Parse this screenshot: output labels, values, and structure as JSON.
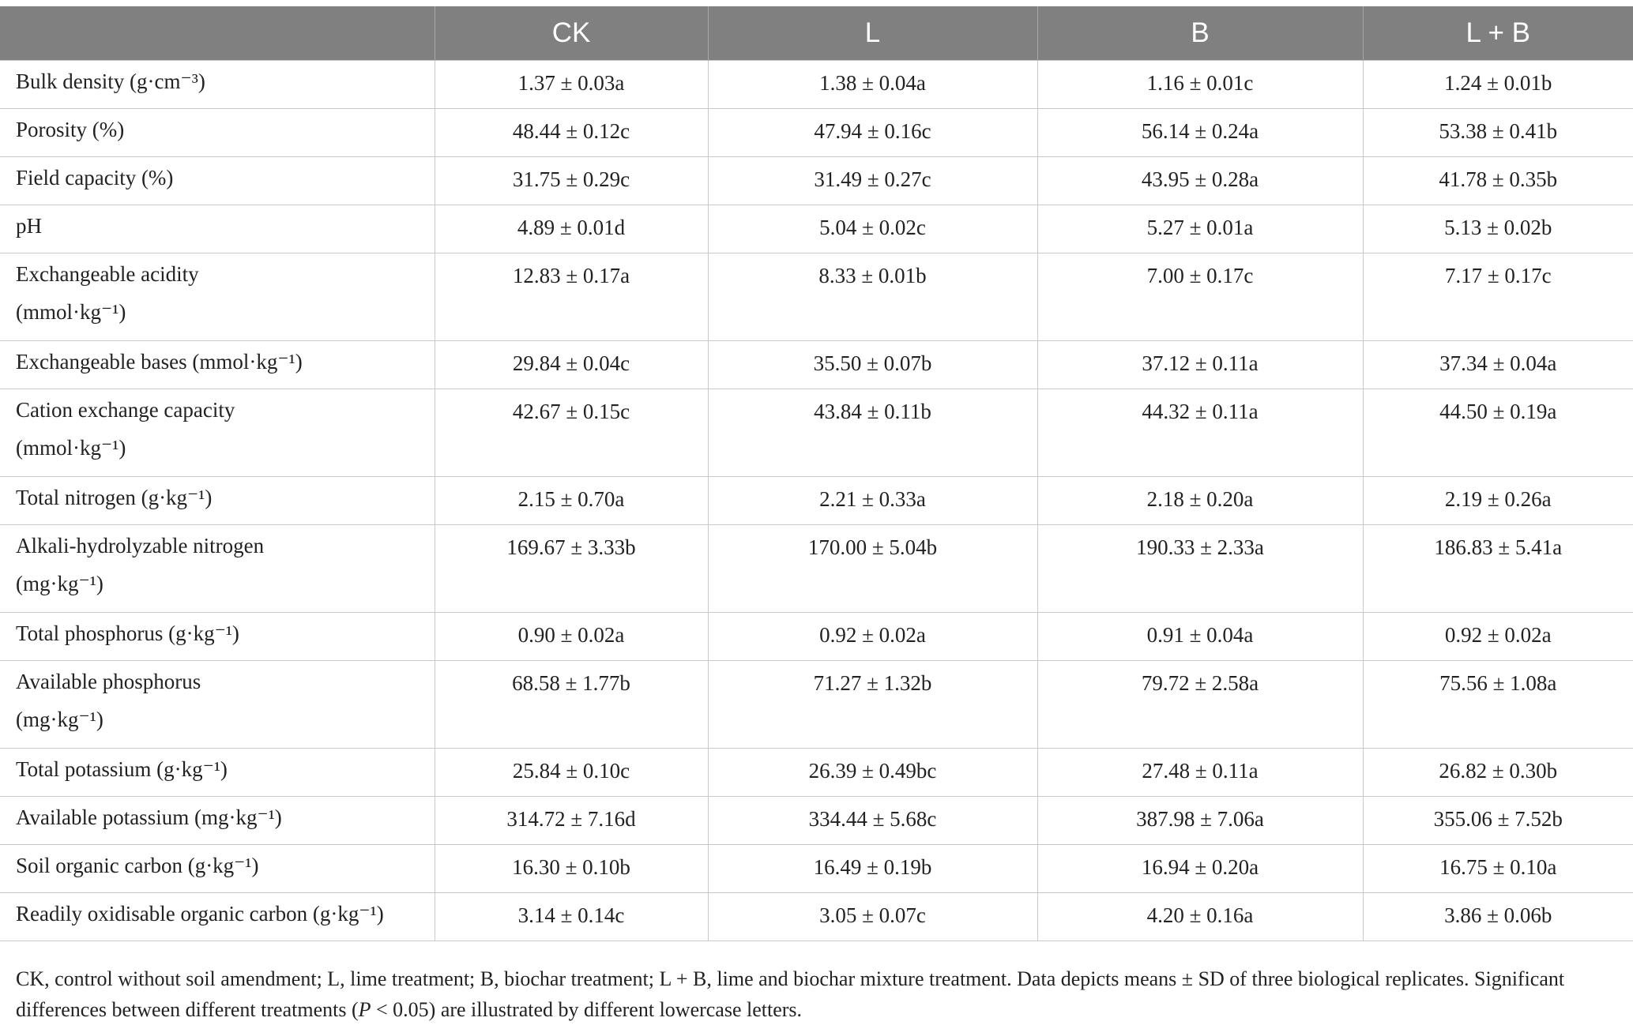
{
  "table": {
    "headers": [
      "",
      "CK",
      "L",
      "B",
      "L + B"
    ],
    "rows": [
      {
        "label": "Bulk density (g·cm⁻³)",
        "label2": "",
        "values": [
          "1.37 ± 0.03a",
          "1.38 ± 0.04a",
          "1.16 ± 0.01c",
          "1.24 ± 0.01b"
        ]
      },
      {
        "label": "Porosity (%)",
        "label2": "",
        "values": [
          "48.44 ± 0.12c",
          "47.94 ± 0.16c",
          "56.14 ± 0.24a",
          "53.38 ± 0.41b"
        ]
      },
      {
        "label": "Field capacity (%)",
        "label2": "",
        "values": [
          "31.75 ± 0.29c",
          "31.49 ± 0.27c",
          "43.95 ± 0.28a",
          "41.78 ± 0.35b"
        ]
      },
      {
        "label": "pH",
        "label2": "",
        "values": [
          "4.89 ± 0.01d",
          "5.04 ± 0.02c",
          "5.27 ± 0.01a",
          "5.13 ± 0.02b"
        ]
      },
      {
        "label": "Exchangeable acidity",
        "label2": "(mmol·kg⁻¹)",
        "values": [
          "12.83 ± 0.17a",
          "8.33 ± 0.01b",
          "7.00 ± 0.17c",
          "7.17 ± 0.17c"
        ]
      },
      {
        "label": "Exchangeable bases (mmol·kg⁻¹)",
        "label2": "",
        "values": [
          "29.84 ± 0.04c",
          "35.50 ± 0.07b",
          "37.12 ± 0.11a",
          "37.34 ± 0.04a"
        ]
      },
      {
        "label": "Cation exchange capacity",
        "label2": "(mmol·kg⁻¹)",
        "values": [
          "42.67 ± 0.15c",
          "43.84 ± 0.11b",
          "44.32 ± 0.11a",
          "44.50 ± 0.19a"
        ]
      },
      {
        "label": "Total nitrogen (g·kg⁻¹)",
        "label2": "",
        "values": [
          "2.15 ± 0.70a",
          "2.21 ± 0.33a",
          "2.18 ± 0.20a",
          "2.19 ± 0.26a"
        ]
      },
      {
        "label": "Alkali-hydrolyzable nitrogen",
        "label2": "(mg·kg⁻¹)",
        "values": [
          "169.67 ± 3.33b",
          "170.00 ± 5.04b",
          "190.33 ± 2.33a",
          "186.83 ± 5.41a"
        ]
      },
      {
        "label": "Total phosphorus (g·kg⁻¹)",
        "label2": "",
        "values": [
          "0.90 ± 0.02a",
          "0.92 ± 0.02a",
          "0.91 ± 0.04a",
          "0.92 ± 0.02a"
        ]
      },
      {
        "label": "Available phosphorus",
        "label2": "(mg·kg⁻¹)",
        "values": [
          "68.58 ± 1.77b",
          "71.27 ± 1.32b",
          "79.72 ± 2.58a",
          "75.56 ± 1.08a"
        ]
      },
      {
        "label": "Total potassium (g·kg⁻¹)",
        "label2": "",
        "values": [
          "25.84 ± 0.10c",
          "26.39 ± 0.49bc",
          "27.48 ± 0.11a",
          "26.82 ± 0.30b"
        ]
      },
      {
        "label": "Available potassium (mg·kg⁻¹)",
        "label2": "",
        "values": [
          "314.72 ± 7.16d",
          "334.44 ± 5.68c",
          "387.98 ± 7.06a",
          "355.06 ± 7.52b"
        ]
      },
      {
        "label": "Soil organic carbon (g·kg⁻¹)",
        "label2": "",
        "values": [
          "16.30 ± 0.10b",
          "16.49 ± 0.19b",
          "16.94 ± 0.20a",
          "16.75 ± 0.10a"
        ]
      },
      {
        "label": "Readily oxidisable organic carbon (g·kg⁻¹)",
        "label2": "",
        "values": [
          "3.14 ± 0.14c",
          "3.05 ± 0.07c",
          "4.20 ± 0.16a",
          "3.86 ± 0.06b"
        ]
      }
    ]
  },
  "footnote": {
    "part1": "CK, control without soil amendment; L, lime treatment; B, biochar treatment; L + B, lime and biochar mixture treatment. Data depicts means ± SD of three biological replicates. Significant differences between different treatments (",
    "p_symbol": "P",
    "part2": " < 0.05) are illustrated by different lowercase letters."
  }
}
